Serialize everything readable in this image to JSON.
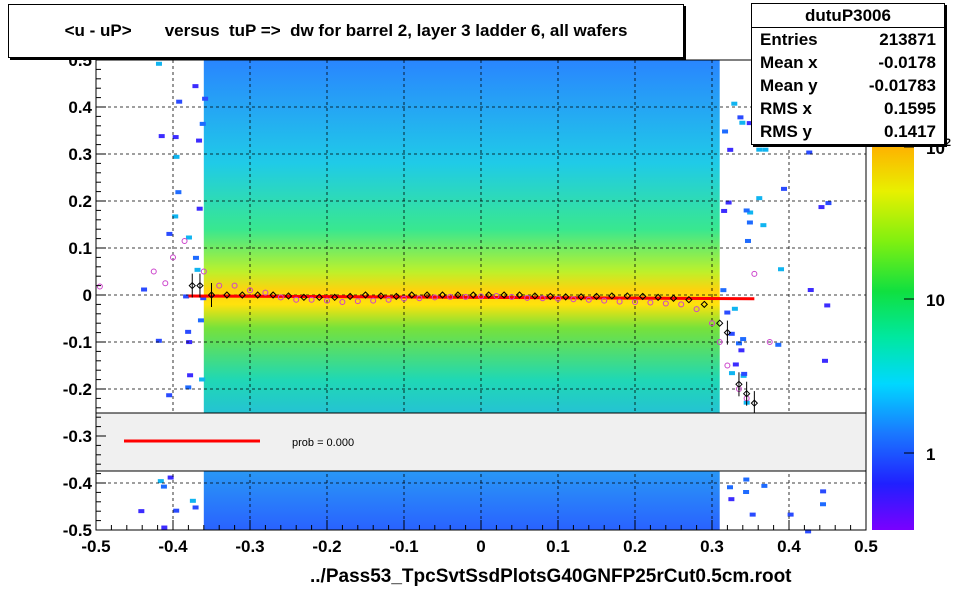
{
  "title": "<u - uP>       versus  tuP =>  dw for barrel 2, layer 3 ladder 6, all wafers",
  "footer": "../Pass53_TpcSvtSsdPlotsG40GNFP25rCut0.5cm.root",
  "stats": {
    "name": "dutuP3006",
    "rows": [
      {
        "label": "Entries",
        "value": "213871"
      },
      {
        "label": "Mean x",
        "value": "-0.0178"
      },
      {
        "label": "Mean y",
        "value": "-0.01783"
      },
      {
        "label": "RMS x",
        "value": "0.1595"
      },
      {
        "label": "RMS y",
        "value": "0.1417"
      }
    ]
  },
  "legend": {
    "text": "prob = 0.000",
    "line_color": "#ff0000"
  },
  "colors": {
    "fit_line": "#ff0000",
    "mean_markers": "#000000",
    "alt_markers": "#cc44cc"
  },
  "chart_data": {
    "type": "heatmap",
    "title": "<u - uP>       versus  tuP =>  dw for barrel 2, layer 3 ladder 6, all wafers",
    "xlim": [
      -0.5,
      0.5
    ],
    "ylim": [
      -0.5,
      0.5
    ],
    "x_ticks": [
      "-0.5",
      "-0.4",
      "-0.3",
      "-0.2",
      "-0.1",
      "0",
      "0.1",
      "0.2",
      "0.3",
      "0.4",
      "0.5"
    ],
    "y_ticks": [
      "-0.5",
      "-0.4",
      "-0.3",
      "-0.2",
      "-0.1",
      "0",
      "0.1",
      "0.2",
      "0.3",
      "0.4",
      "0.5"
    ],
    "z_ticks": [
      "1",
      "10",
      "10^2"
    ],
    "grid": true,
    "fit_line": {
      "x": [
        -0.38,
        0.355
      ],
      "y": [
        -0.002,
        -0.008
      ]
    },
    "profile_black": {
      "x": [
        -0.375,
        -0.365,
        -0.35,
        -0.33,
        -0.31,
        -0.29,
        -0.27,
        -0.25,
        -0.23,
        -0.21,
        -0.19,
        -0.17,
        -0.15,
        -0.13,
        -0.11,
        -0.09,
        -0.07,
        -0.05,
        -0.03,
        -0.01,
        0.01,
        0.03,
        0.05,
        0.07,
        0.09,
        0.11,
        0.13,
        0.15,
        0.17,
        0.19,
        0.21,
        0.23,
        0.25,
        0.27,
        0.29,
        0.31,
        0.32,
        0.335,
        0.345,
        0.355
      ],
      "y": [
        0.02,
        0.02,
        0.0,
        0.0,
        0.0,
        0.0,
        0.0,
        -0.002,
        -0.005,
        -0.005,
        -0.005,
        -0.003,
        0.0,
        -0.002,
        -0.003,
        0.0,
        0.0,
        0.0,
        0.0,
        0.0,
        0.0,
        0.0,
        0.0,
        -0.002,
        -0.003,
        -0.004,
        -0.004,
        -0.003,
        -0.002,
        -0.002,
        -0.003,
        -0.005,
        -0.007,
        -0.01,
        -0.02,
        -0.06,
        -0.08,
        -0.19,
        -0.21,
        -0.23
      ]
    },
    "profile_magenta": {
      "x": [
        -0.495,
        -0.425,
        -0.41,
        -0.4,
        -0.385,
        -0.36,
        -0.34,
        -0.32,
        -0.3,
        -0.28,
        -0.26,
        -0.24,
        -0.22,
        -0.2,
        -0.18,
        -0.16,
        -0.14,
        -0.12,
        -0.1,
        -0.08,
        -0.06,
        -0.04,
        -0.02,
        0.0,
        0.02,
        0.04,
        0.06,
        0.08,
        0.1,
        0.12,
        0.14,
        0.16,
        0.18,
        0.2,
        0.22,
        0.24,
        0.26,
        0.28,
        0.3,
        0.31,
        0.32,
        0.335,
        0.345,
        0.355,
        0.375
      ],
      "y": [
        0.018,
        0.05,
        0.025,
        0.08,
        0.115,
        0.05,
        0.02,
        0.02,
        0.01,
        0.005,
        -0.005,
        -0.01,
        -0.01,
        -0.012,
        -0.015,
        -0.013,
        -0.012,
        -0.01,
        -0.008,
        -0.007,
        -0.005,
        -0.004,
        -0.004,
        -0.003,
        -0.002,
        -0.004,
        -0.006,
        -0.007,
        -0.008,
        -0.009,
        -0.01,
        -0.012,
        -0.014,
        -0.015,
        -0.016,
        -0.018,
        -0.02,
        -0.03,
        -0.06,
        -0.1,
        -0.15,
        -0.2,
        -0.22,
        0.045,
        -0.1
      ]
    }
  }
}
